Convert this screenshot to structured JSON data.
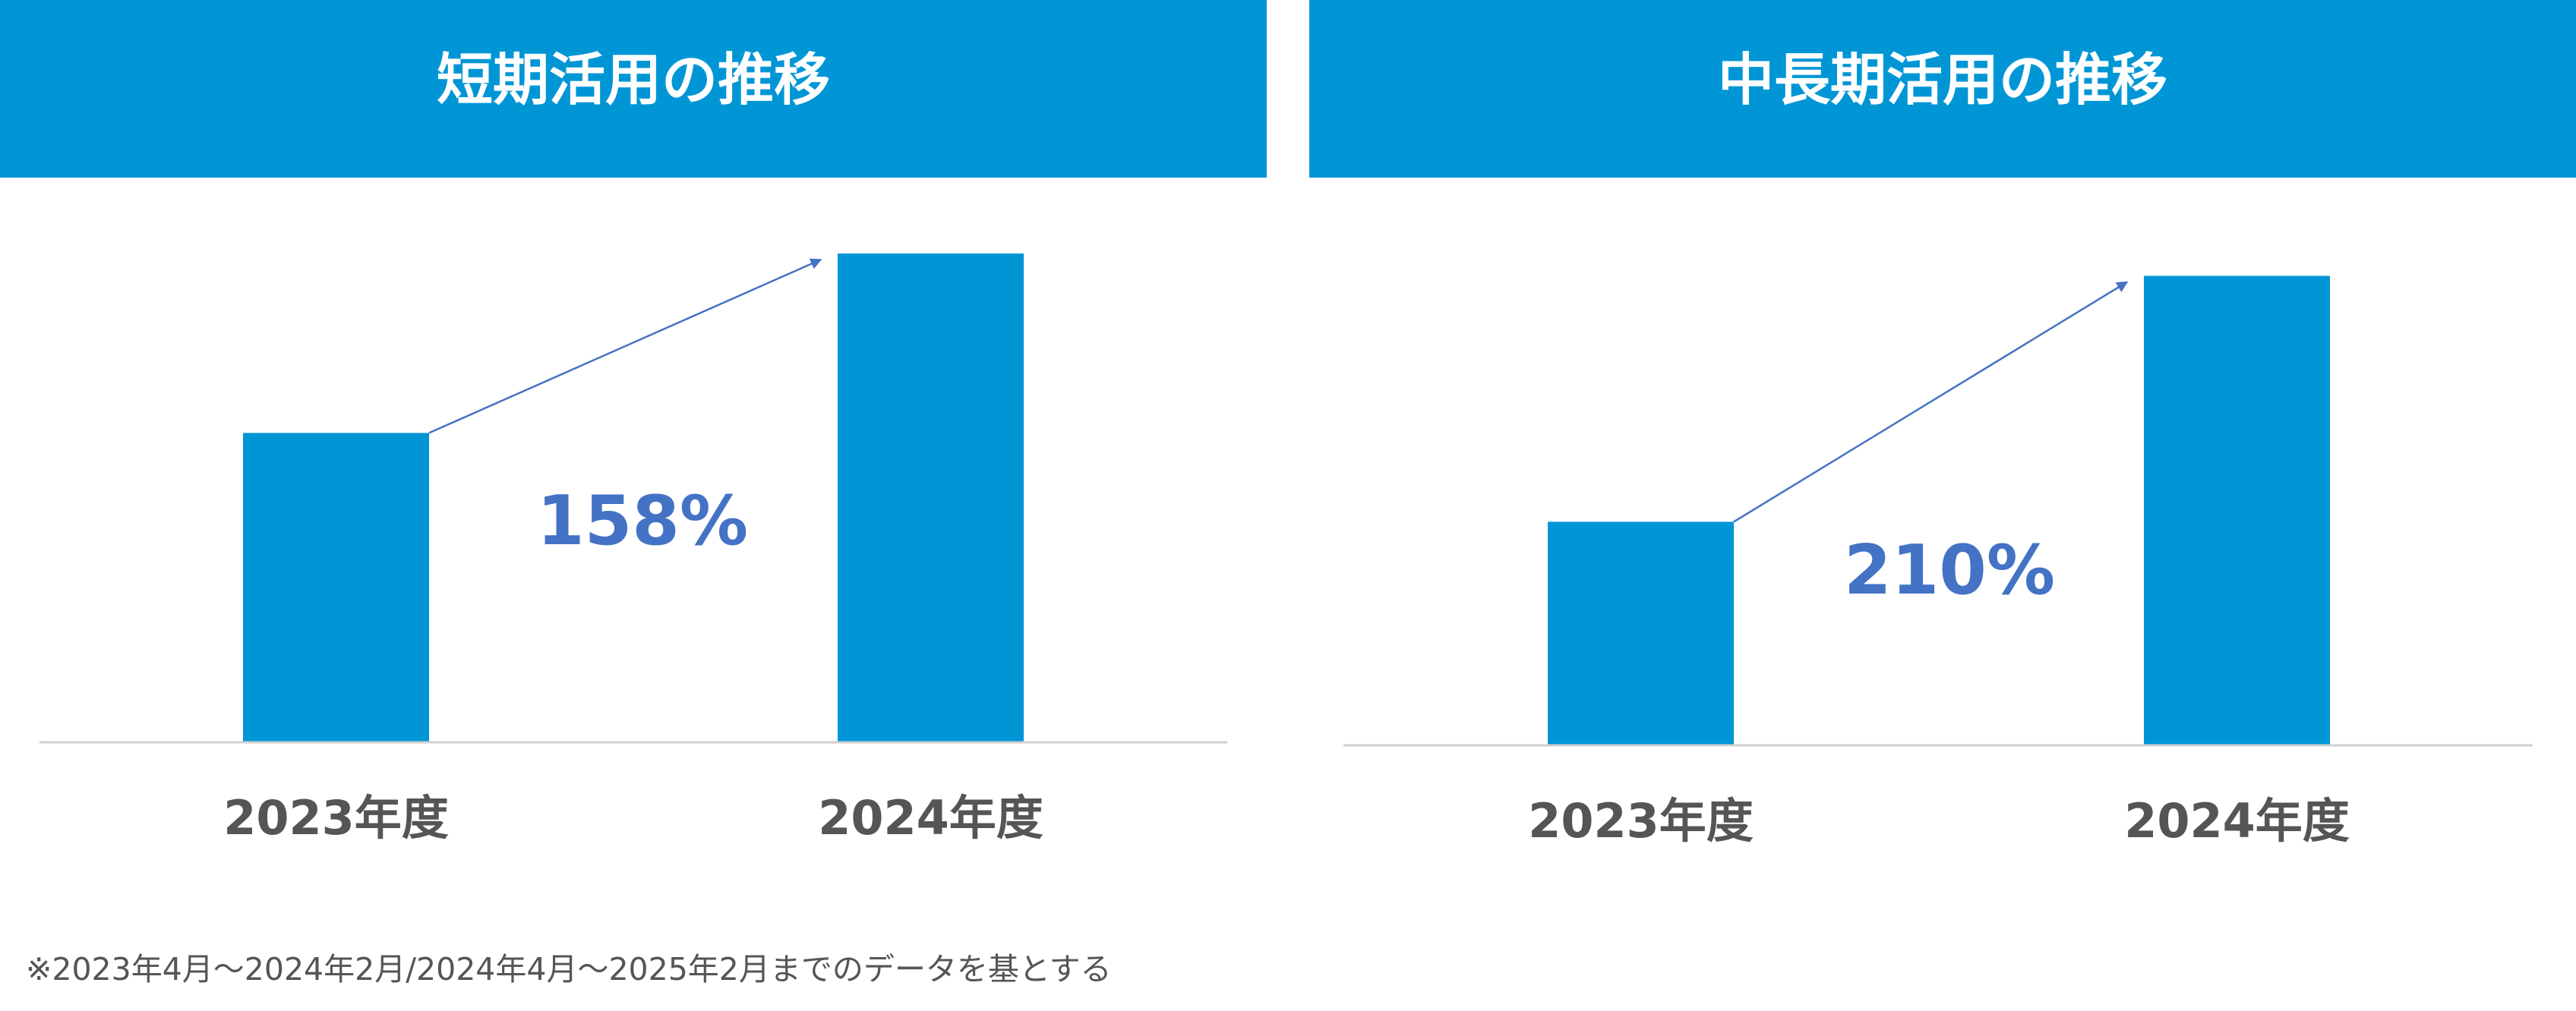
{
  "chart_data": [
    {
      "type": "bar",
      "title": "短期活用の推移",
      "categories": [
        "2023年度",
        "2024年度"
      ],
      "values": [
        100,
        158
      ],
      "color": "#0096d6",
      "ylim": [
        0,
        171
      ],
      "annotation": "158%"
    },
    {
      "type": "bar",
      "title": "中長期活用の推移",
      "categories": [
        "2023年度",
        "2024年度"
      ],
      "values": [
        100,
        210
      ],
      "color": "#0096d6",
      "ylim": [
        0,
        238
      ],
      "annotation": "210%"
    }
  ],
  "footnote": "※2023年4月～2024年2月/2024年4月～2025年2月までのデータを基とする"
}
